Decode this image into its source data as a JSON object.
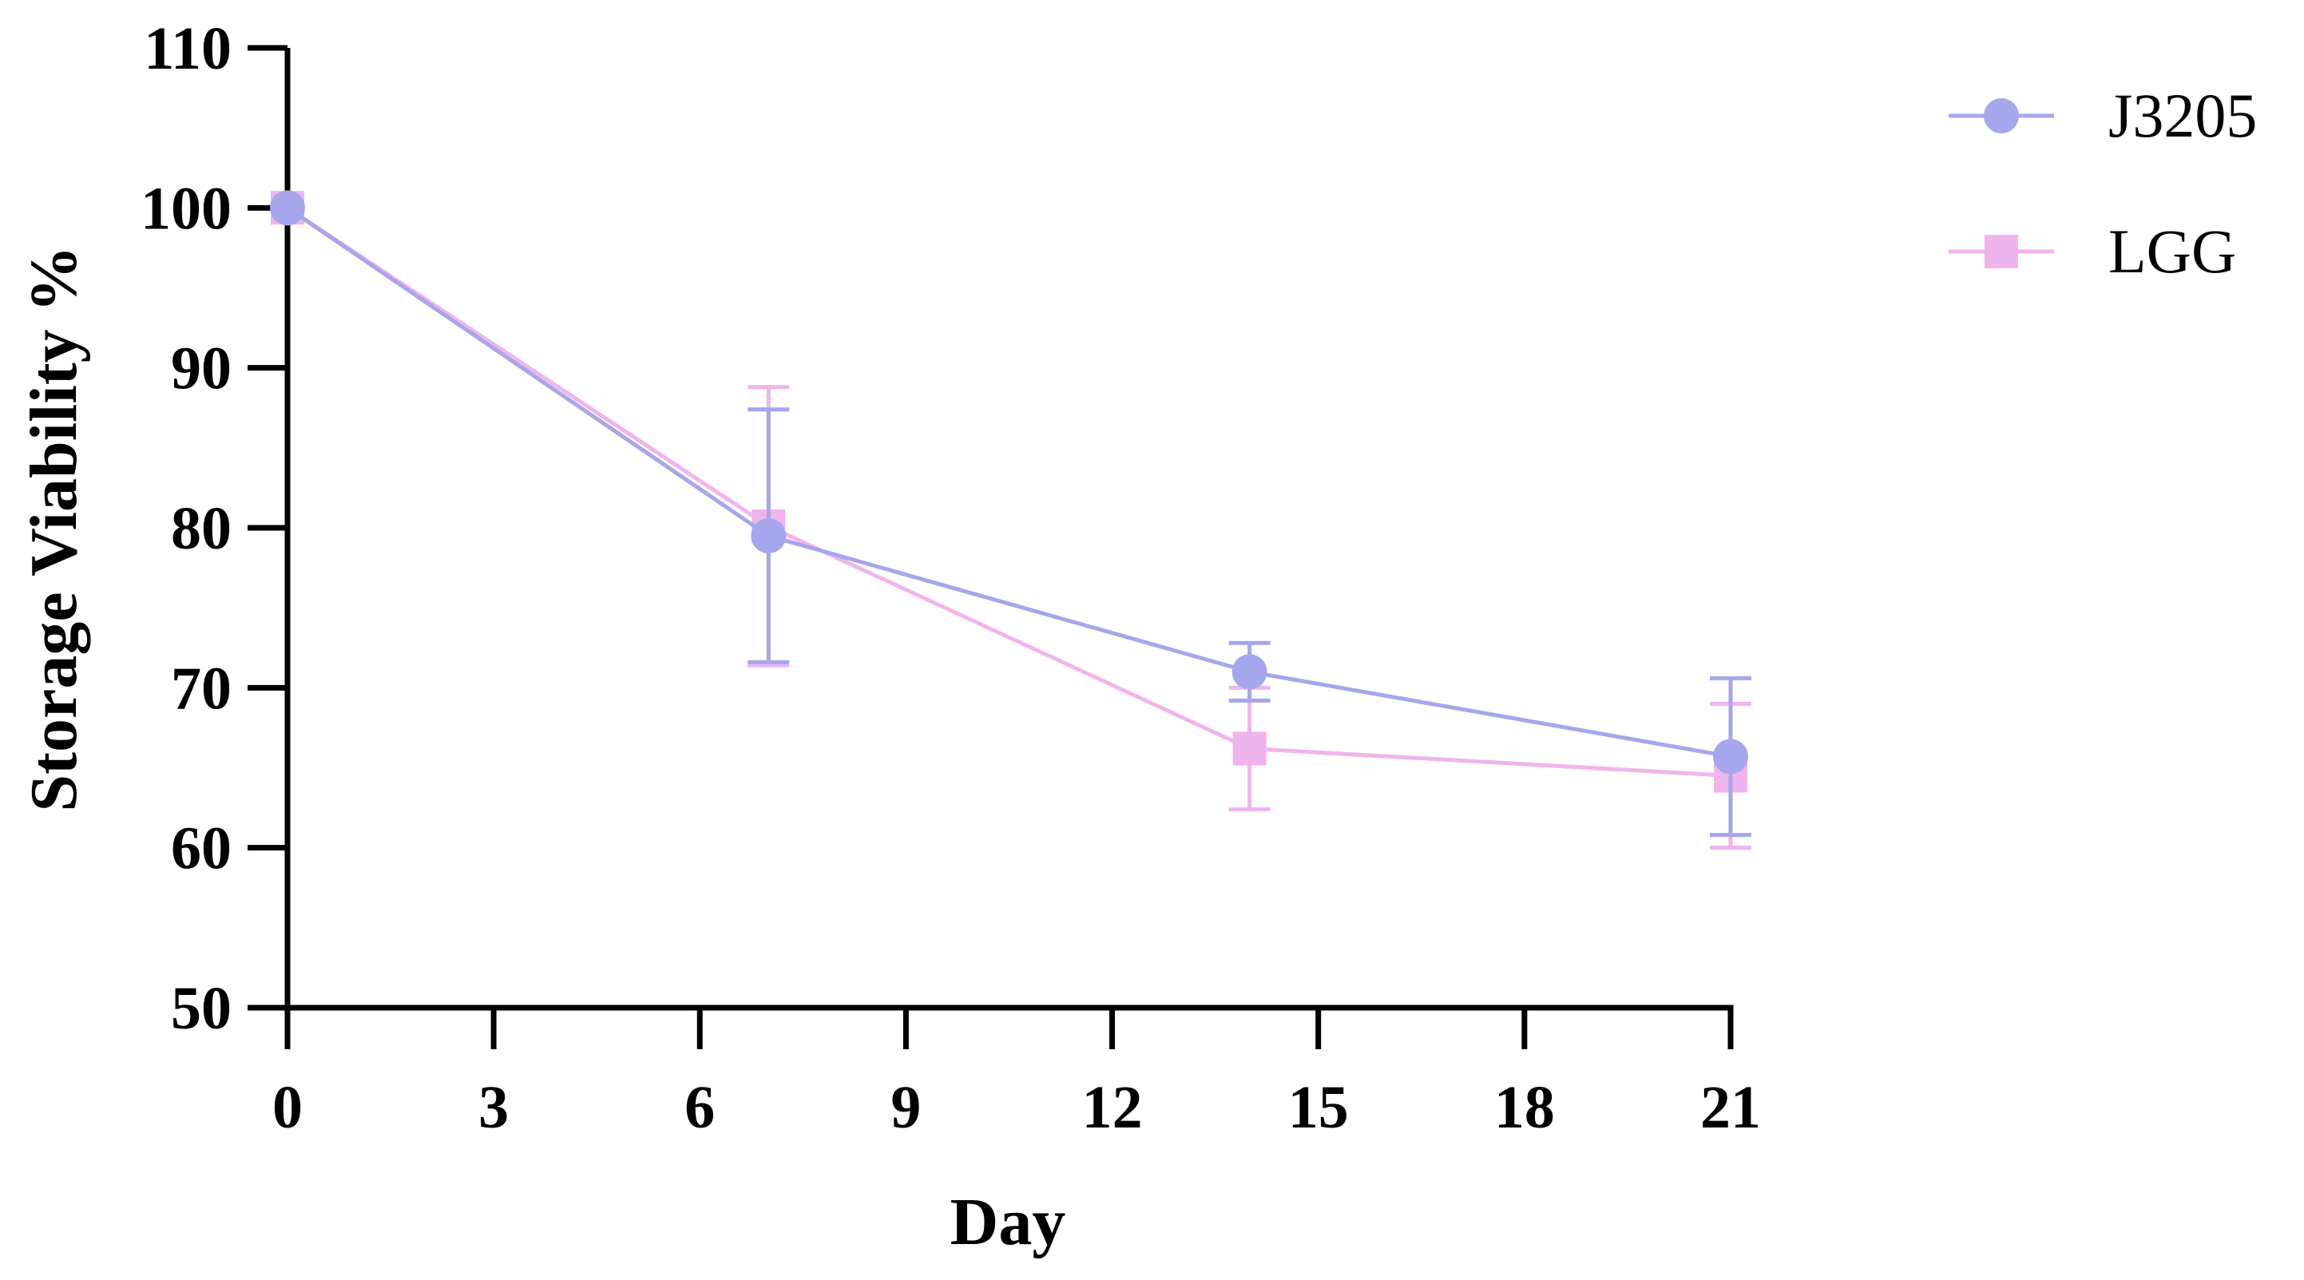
{
  "chart_data": {
    "type": "line",
    "xlabel": "Day",
    "ylabel": "Storage Viability %",
    "xlim": [
      0,
      21
    ],
    "ylim": [
      50,
      110
    ],
    "xticks": [
      0,
      3,
      6,
      9,
      12,
      15,
      18,
      21
    ],
    "yticks": [
      50,
      60,
      70,
      80,
      90,
      100,
      110
    ],
    "x": [
      0,
      7,
      14,
      21
    ],
    "legend_position": "top-right",
    "series": [
      {
        "name": "J3205",
        "marker": "circle",
        "color": "#A6A6EC",
        "values": [
          100,
          79.5,
          71.0,
          65.7
        ],
        "error": [
          0,
          7.9,
          1.8,
          4.9
        ]
      },
      {
        "name": "LGG",
        "marker": "square",
        "color": "#F0B4EC",
        "values": [
          100,
          80.1,
          66.2,
          64.5
        ],
        "error": [
          0,
          8.7,
          3.8,
          4.5
        ]
      }
    ]
  }
}
